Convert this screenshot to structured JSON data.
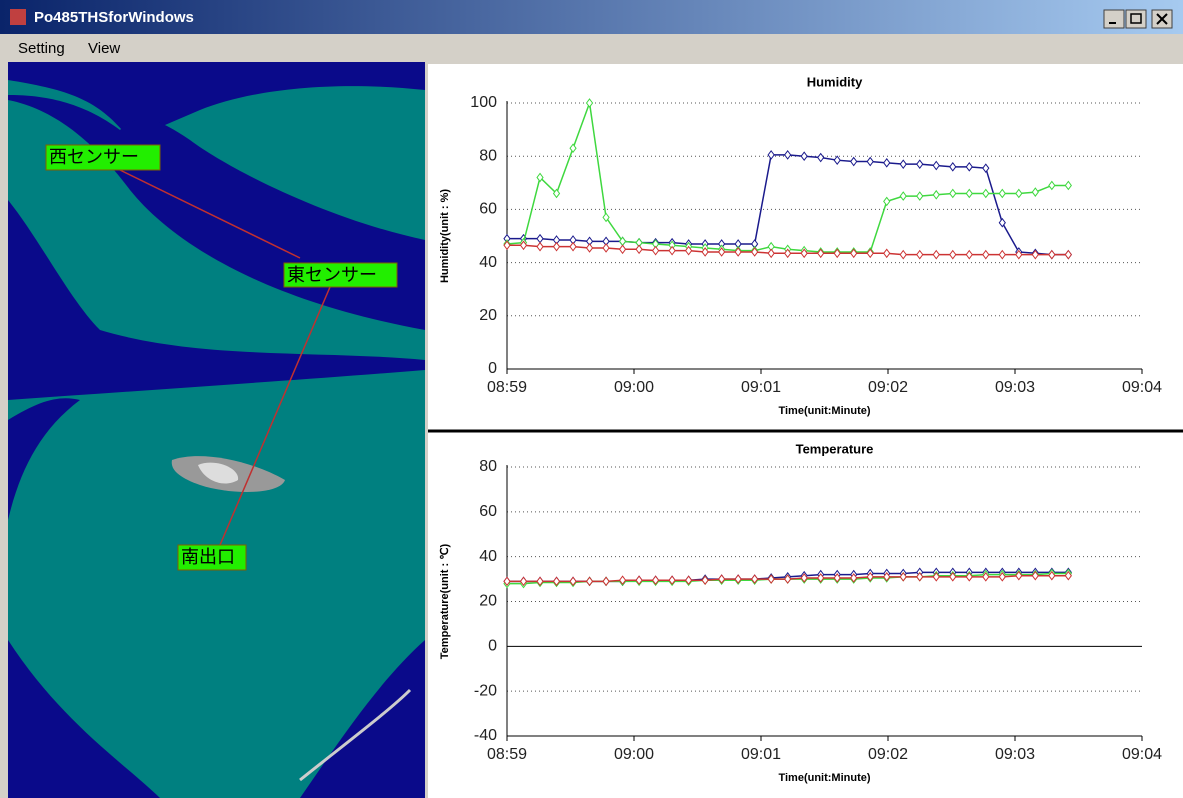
{
  "window": {
    "title": "Po485THSforWindows"
  },
  "menu": [
    "Setting",
    "View"
  ],
  "map": {
    "labels": [
      "西センサー",
      "東センサー",
      "南出口"
    ]
  },
  "chart_data": [
    {
      "type": "line",
      "title": "Humidity",
      "x_label": "Time(unit:Minute)",
      "y_label": "Humidity(unit : %)",
      "x": [
        539.0,
        539.13,
        539.26,
        539.39,
        539.52,
        539.65,
        539.78,
        539.91,
        540.04,
        540.17,
        540.3,
        540.43,
        540.56,
        540.69,
        540.82,
        540.95,
        541.08,
        541.21,
        541.34,
        541.47,
        541.6,
        541.73,
        541.86,
        541.99,
        542.12,
        542.25,
        542.38,
        542.51,
        542.64,
        542.77,
        542.9,
        543.03,
        543.16,
        543.29,
        543.42
      ],
      "xlim": [
        539,
        544
      ],
      "xticks": [
        {
          "value": 539,
          "label": "08:59"
        },
        {
          "value": 540,
          "label": "09:00"
        },
        {
          "value": 541,
          "label": "09:01"
        },
        {
          "value": 542,
          "label": "09:02"
        },
        {
          "value": 543,
          "label": "09:03"
        },
        {
          "value": 544,
          "label": "09:04"
        }
      ],
      "ylim": [
        0,
        100
      ],
      "yticks": [
        0,
        20,
        40,
        60,
        80,
        100
      ],
      "grid": true,
      "series": [
        {
          "color": "#1a1a8c",
          "values": [
            49,
            49,
            49,
            48.5,
            48.5,
            48,
            48,
            48,
            47.5,
            47.5,
            47.5,
            47,
            47,
            47,
            47,
            47,
            80.5,
            80.5,
            80,
            79.5,
            78.5,
            78,
            78,
            77.5,
            77,
            77,
            76.5,
            76,
            76,
            75.5,
            55,
            44,
            43.5,
            43,
            43
          ]
        },
        {
          "color": "#3fd83f",
          "values": [
            47,
            47.5,
            72,
            66,
            83,
            100,
            57,
            48,
            47.5,
            47,
            46.5,
            46,
            45.5,
            45,
            44.5,
            44.5,
            46,
            45,
            44.5,
            44,
            44,
            44,
            44,
            63,
            65,
            65,
            65.5,
            66,
            66,
            66,
            66,
            66,
            66.5,
            69,
            69
          ]
        },
        {
          "color": "#cc3333",
          "values": [
            46.5,
            46.5,
            46,
            46,
            46,
            45.5,
            45.5,
            45,
            45,
            44.5,
            44.5,
            44.5,
            44,
            44,
            44,
            44,
            43.5,
            43.5,
            43.5,
            43.5,
            43.5,
            43.5,
            43.5,
            43.5,
            43,
            43,
            43,
            43,
            43,
            43,
            43,
            43,
            43,
            43,
            43
          ]
        }
      ]
    },
    {
      "type": "line",
      "title": "Temperature",
      "x_label": "Time(unit:Minute)",
      "y_label": "Temperature(unit : ℃)",
      "x": [
        539.0,
        539.13,
        539.26,
        539.39,
        539.52,
        539.65,
        539.78,
        539.91,
        540.04,
        540.17,
        540.3,
        540.43,
        540.56,
        540.69,
        540.82,
        540.95,
        541.08,
        541.21,
        541.34,
        541.47,
        541.6,
        541.73,
        541.86,
        541.99,
        542.12,
        542.25,
        542.38,
        542.51,
        542.64,
        542.77,
        542.9,
        543.03,
        543.16,
        543.29,
        543.42
      ],
      "xlim": [
        539,
        544
      ],
      "xticks": [
        {
          "value": 539,
          "label": "08:59"
        },
        {
          "value": 540,
          "label": "09:00"
        },
        {
          "value": 541,
          "label": "09:01"
        },
        {
          "value": 542,
          "label": "09:02"
        },
        {
          "value": 543,
          "label": "09:03"
        },
        {
          "value": 544,
          "label": "09:04"
        }
      ],
      "ylim": [
        -40,
        80
      ],
      "yticks": [
        -40,
        -20,
        0,
        20,
        40,
        60,
        80
      ],
      "grid": true,
      "series": [
        {
          "color": "#1a1a8c",
          "values": [
            29,
            29,
            29,
            29,
            29,
            29,
            29,
            29,
            29.5,
            29.5,
            29.5,
            29.5,
            30,
            30,
            30,
            30,
            30.5,
            31,
            31.5,
            32,
            32,
            32,
            32.5,
            32.5,
            32.5,
            33,
            33,
            33,
            33,
            33,
            33,
            33,
            33,
            33,
            33
          ]
        },
        {
          "color": "#3fd83f",
          "values": [
            28,
            28,
            28.5,
            28.5,
            28.5,
            29,
            29,
            29,
            29,
            29,
            29,
            29,
            29.5,
            29.5,
            29.5,
            29.5,
            30,
            30,
            30,
            30,
            30,
            30,
            30.5,
            30.5,
            31,
            31,
            31.5,
            31.5,
            31.5,
            32,
            32,
            32,
            32,
            32.5,
            32.5
          ]
        },
        {
          "color": "#cc3333",
          "values": [
            29,
            29,
            29,
            29,
            29,
            29,
            29,
            29.5,
            29.5,
            29.5,
            29.5,
            29.5,
            29.5,
            30,
            30,
            30,
            30,
            30,
            30.5,
            30.5,
            30.5,
            30.5,
            31,
            31,
            31,
            31,
            31,
            31,
            31,
            31,
            31,
            31.5,
            31.5,
            31.5,
            31.5
          ]
        }
      ]
    }
  ]
}
